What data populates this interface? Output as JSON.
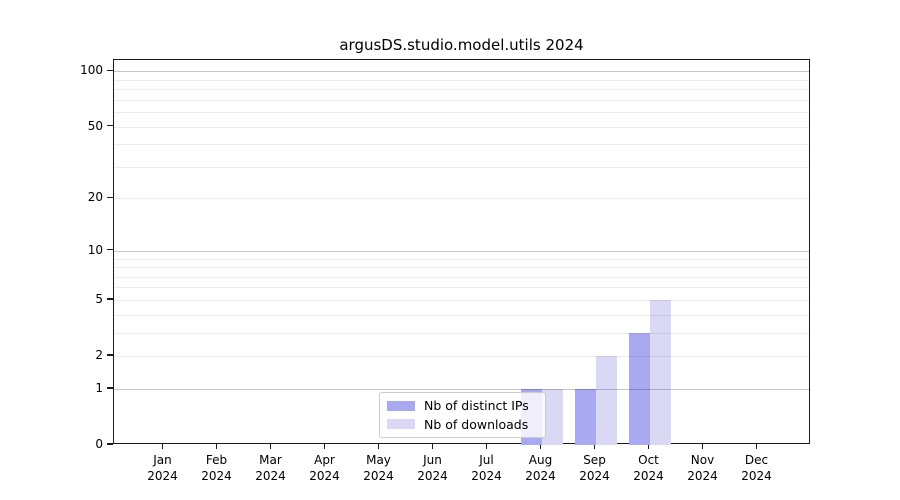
{
  "title": "argusDS.studio.model.utils 2024",
  "chart_data": {
    "type": "bar",
    "title": "argusDS.studio.model.utils 2024",
    "categories": [
      "Jan 2024",
      "Feb 2024",
      "Mar 2024",
      "Apr 2024",
      "May 2024",
      "Jun 2024",
      "Jul 2024",
      "Aug 2024",
      "Sep 2024",
      "Oct 2024",
      "Nov 2024",
      "Dec 2024"
    ],
    "series": [
      {
        "name": "Nb of distinct IPs",
        "color": "#a9a9f2",
        "values": [
          0,
          0,
          0,
          0,
          0,
          0,
          0,
          1,
          1,
          3,
          0,
          0
        ]
      },
      {
        "name": "Nb of downloads",
        "color": "#d9d9f6",
        "values": [
          0,
          0,
          0,
          0,
          0,
          0,
          0,
          1,
          2,
          5,
          0,
          0
        ]
      }
    ],
    "xlabel": "",
    "ylabel": "",
    "yscale": "log1p",
    "ylim": [
      0,
      115
    ],
    "yticks": [
      0,
      1,
      2,
      5,
      10,
      20,
      50,
      100
    ],
    "major_gridlines": [
      1,
      10,
      100
    ],
    "minor_gridlines": [
      2,
      3,
      4,
      5,
      6,
      7,
      8,
      9,
      20,
      30,
      40,
      50,
      60,
      70,
      80,
      90
    ],
    "grid": true,
    "legend_position": "lower center"
  },
  "colors": {
    "background": "#ffffff",
    "spine": "#1c1c1c",
    "major_grid": "#c8c8c8",
    "minor_grid": "#ececec",
    "series_1": "#a9a9f2",
    "series_2": "#d9d9f6"
  }
}
